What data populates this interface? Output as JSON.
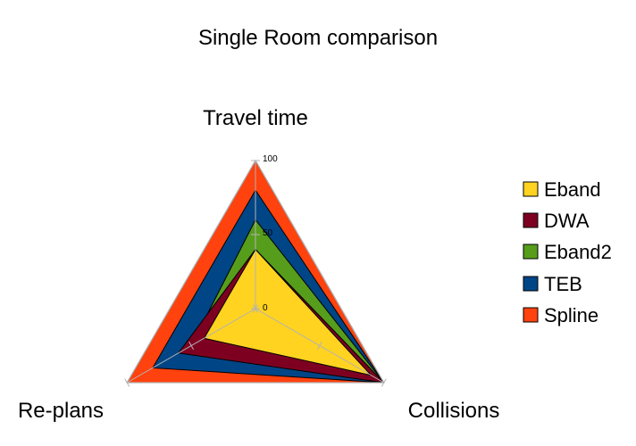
{
  "chart_data": {
    "type": "radar",
    "title": "Single Room comparison",
    "axes": [
      "Travel time",
      "Collisions",
      "Re-plans"
    ],
    "rlim": [
      0,
      100
    ],
    "ticks": [
      "0",
      "50",
      "100"
    ],
    "series": [
      {
        "name": "Spline",
        "color": "#ff420e",
        "values": [
          100,
          100,
          100
        ]
      },
      {
        "name": "TEB",
        "color": "#004586",
        "values": [
          80,
          100,
          80
        ]
      },
      {
        "name": "Eband2",
        "color": "#579d1c",
        "values": [
          60,
          100,
          50
        ]
      },
      {
        "name": "DWA",
        "color": "#7e0021",
        "values": [
          40,
          100,
          60
        ]
      },
      {
        "name": "Eband",
        "color": "#ffd320",
        "values": [
          40,
          90,
          40
        ]
      }
    ],
    "legend_order": [
      "Eband",
      "DWA",
      "Eband2",
      "TEB",
      "Spline"
    ],
    "grid": true,
    "legend_position": "right"
  }
}
